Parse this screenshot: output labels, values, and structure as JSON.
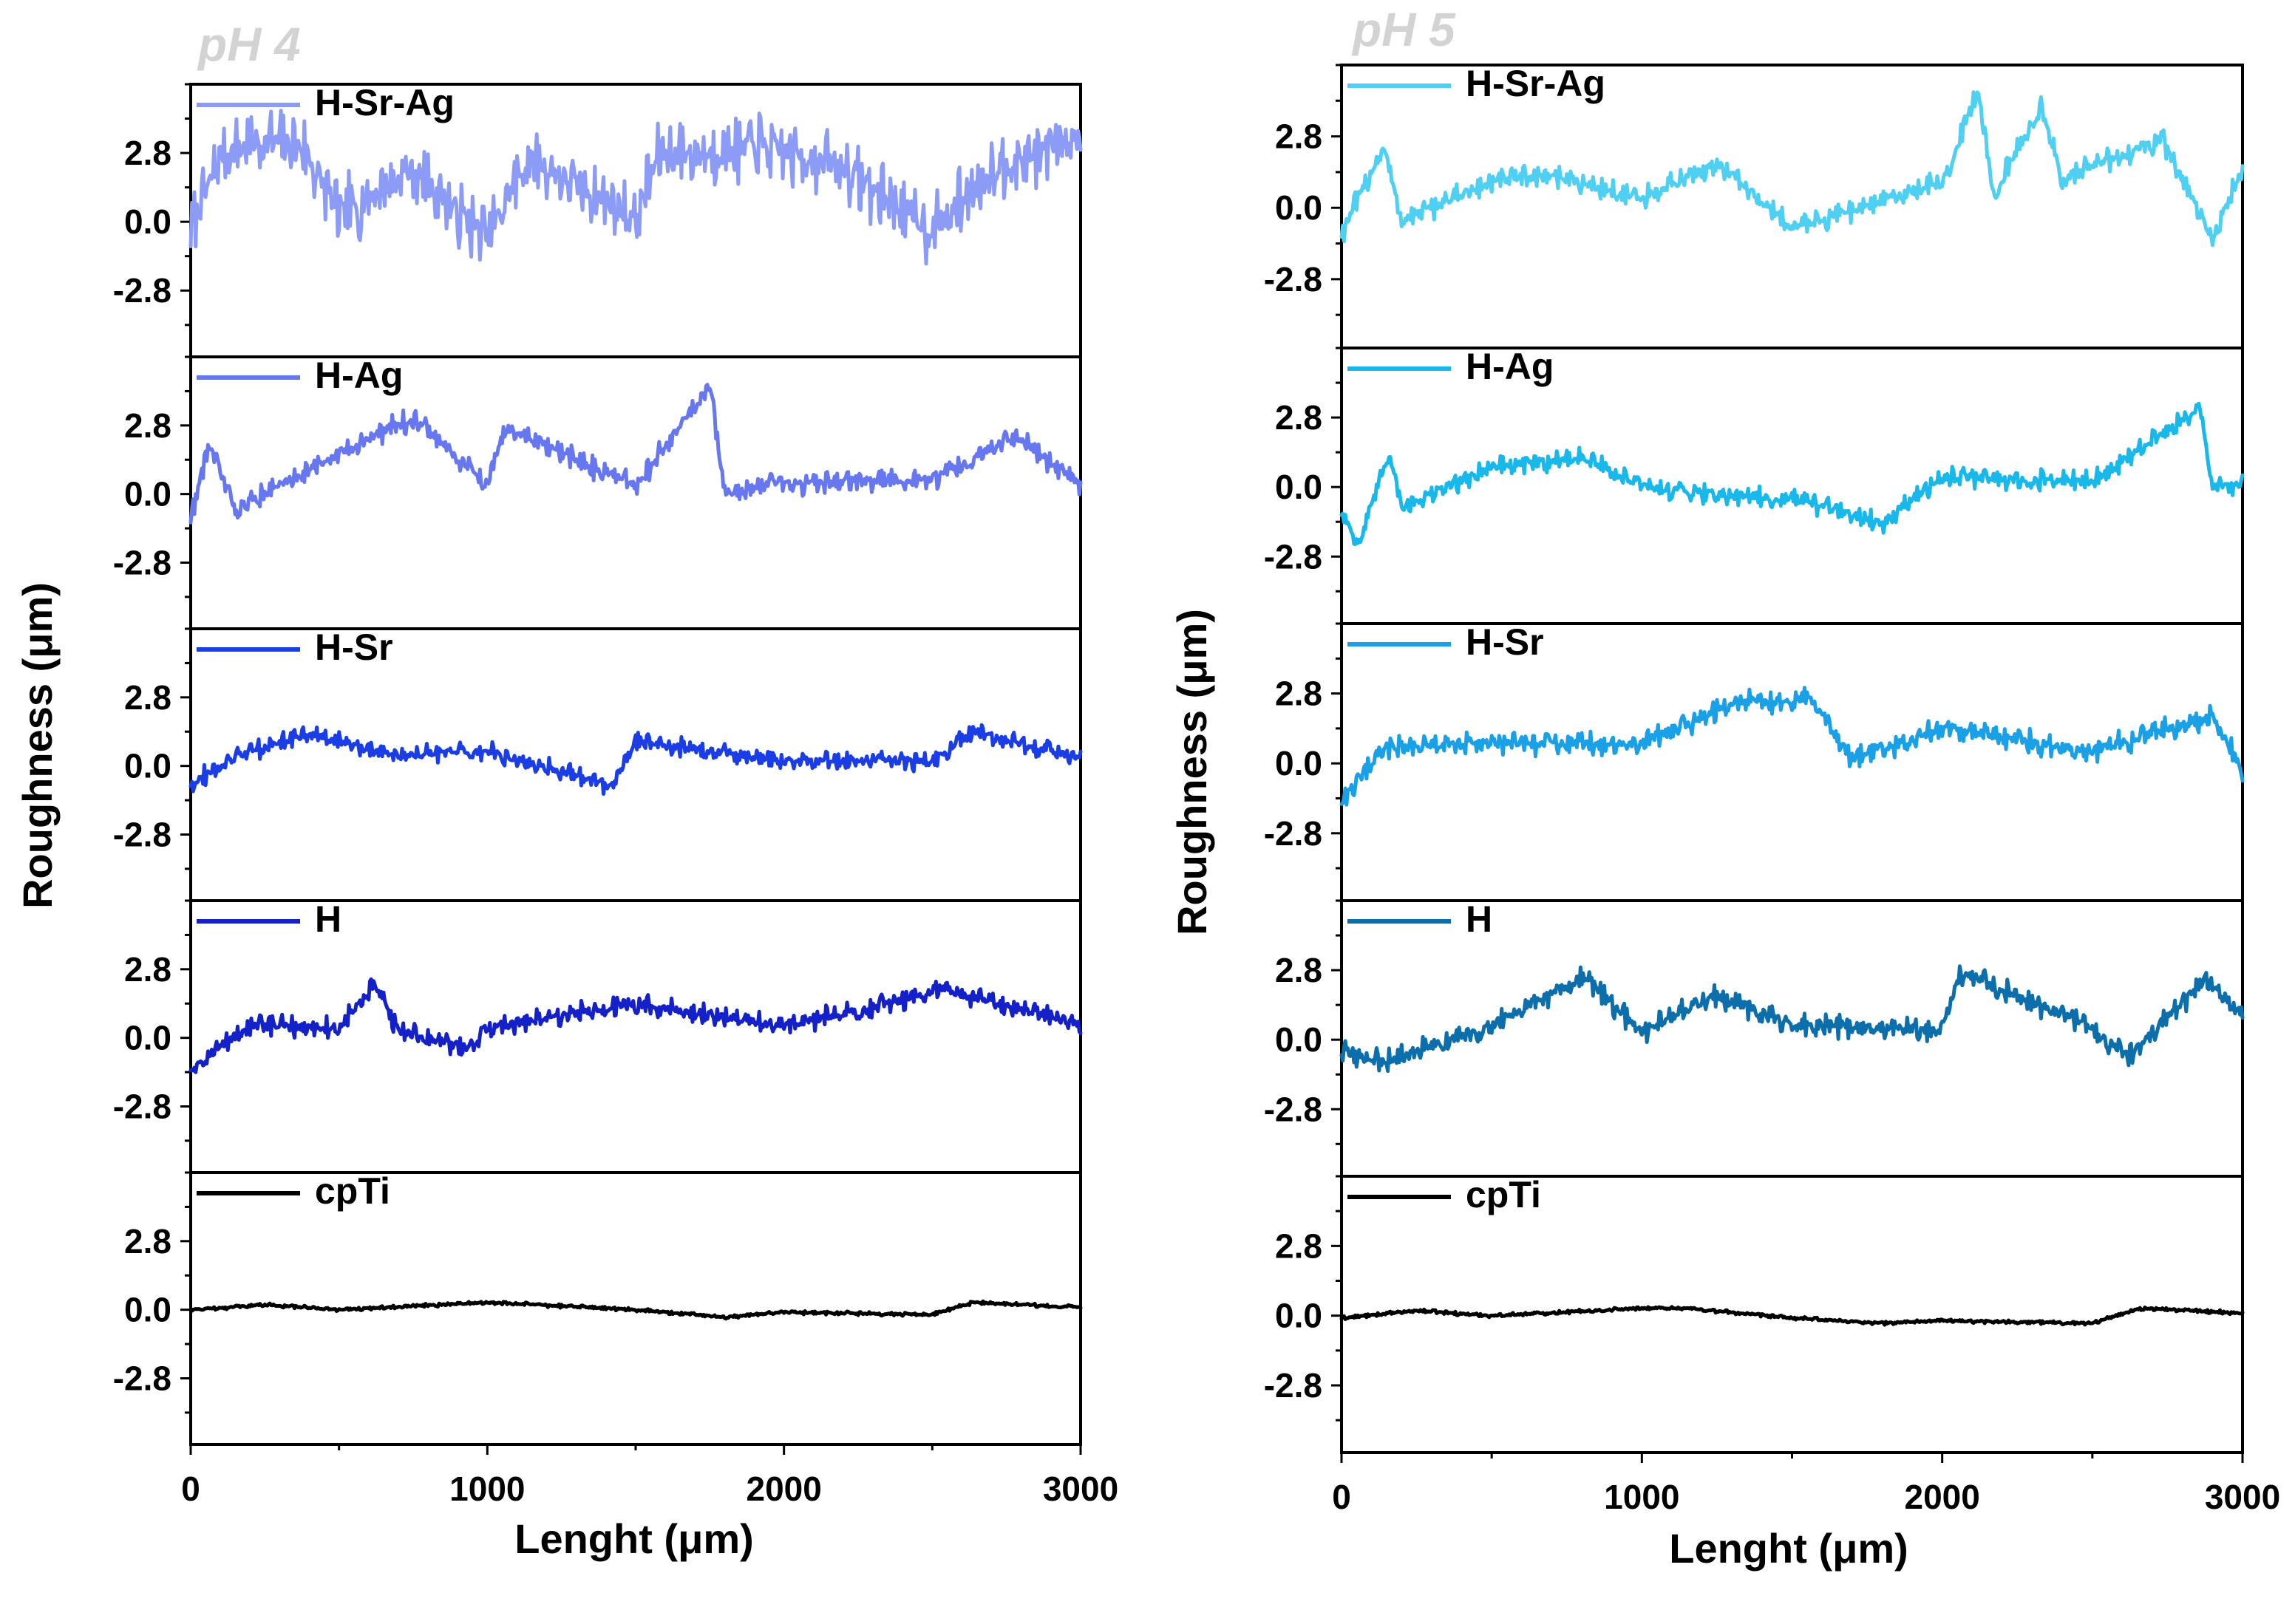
{
  "chart_data": [
    {
      "type": "line",
      "title": "pH 4",
      "xlabel": "Lenght (μm)",
      "ylabel": "Roughness (μm)",
      "xlim": [
        0,
        3000
      ],
      "x_ticks": [
        0,
        1000,
        2000,
        3000
      ],
      "y_ticks": [
        2.8,
        0.0,
        -2.8
      ],
      "ylim_per_subplot": [
        -5.5,
        5.6
      ],
      "subplots": [
        {
          "name": "H-Sr-Ag",
          "color": "#8c9cf6",
          "amplitude": 1.6,
          "points": [
            [
              0,
              -0.5
            ],
            [
              100,
              2.8
            ],
            [
              250,
              3.3
            ],
            [
              375,
              3.1
            ],
            [
              500,
              0.3
            ],
            [
              750,
              2.1
            ],
            [
              1000,
              -0.6
            ],
            [
              1140,
              2.6
            ],
            [
              1500,
              0.2
            ],
            [
              1580,
              2.8
            ],
            [
              1750,
              2.8
            ],
            [
              1940,
              3.1
            ],
            [
              2200,
              2.2
            ],
            [
              2500,
              -0.4
            ],
            [
              2700,
              2.1
            ],
            [
              3000,
              3.5
            ]
          ]
        },
        {
          "name": "H-Ag",
          "color": "#6677f0",
          "amplitude": 0.55,
          "points": [
            [
              0,
              -1.0
            ],
            [
              60,
              2.0
            ],
            [
              150,
              -0.6
            ],
            [
              700,
              2.9
            ],
            [
              770,
              2.9
            ],
            [
              1000,
              0.4
            ],
            [
              1060,
              2.7
            ],
            [
              1500,
              0.3
            ],
            [
              1750,
              4.4
            ],
            [
              1800,
              0.0
            ],
            [
              2000,
              0.4
            ],
            [
              2500,
              0.6
            ],
            [
              2780,
              2.4
            ],
            [
              3000,
              0.4
            ]
          ]
        },
        {
          "name": "H-Sr",
          "color": "#1a3de6",
          "amplitude": 0.45,
          "points": [
            [
              0,
              -0.7
            ],
            [
              200,
              0.6
            ],
            [
              400,
              1.3
            ],
            [
              700,
              0.4
            ],
            [
              1000,
              0.6
            ],
            [
              1420,
              -0.8
            ],
            [
              1500,
              1.0
            ],
            [
              2000,
              0.2
            ],
            [
              2500,
              0.2
            ],
            [
              2640,
              1.4
            ],
            [
              3000,
              0.3
            ]
          ]
        },
        {
          "name": "H",
          "color": "#1521c8",
          "amplitude": 0.5,
          "points": [
            [
              0,
              -1.2
            ],
            [
              200,
              0.5
            ],
            [
              500,
              0.4
            ],
            [
              620,
              2.1
            ],
            [
              700,
              0.3
            ],
            [
              950,
              -0.5
            ],
            [
              1000,
              0.4
            ],
            [
              1500,
              1.4
            ],
            [
              2000,
              0.5
            ],
            [
              2330,
              1.3
            ],
            [
              2530,
              2.0
            ],
            [
              3000,
              0.6
            ]
          ]
        },
        {
          "name": "cpTi",
          "color": "#000000",
          "amplitude": 0.08,
          "points": [
            [
              0,
              0.0
            ],
            [
              250,
              0.2
            ],
            [
              500,
              0.0
            ],
            [
              1000,
              0.3
            ],
            [
              1500,
              0.0
            ],
            [
              1800,
              -0.3
            ],
            [
              2000,
              -0.1
            ],
            [
              2500,
              -0.2
            ],
            [
              2640,
              0.3
            ],
            [
              3000,
              0.1
            ]
          ]
        }
      ]
    },
    {
      "type": "line",
      "title": "pH 5",
      "xlabel": "Lenght (μm)",
      "ylabel": "Roughness (μm)",
      "xlim": [
        0,
        3000
      ],
      "x_ticks": [
        0,
        1000,
        2000,
        3000
      ],
      "y_ticks": [
        2.8,
        0.0,
        -2.8
      ],
      "ylim_per_subplot": [
        -5.5,
        5.6
      ],
      "subplots": [
        {
          "name": "H-Sr-Ag",
          "color": "#4fd0f2",
          "amplitude": 0.55,
          "points": [
            [
              0,
              -1.0
            ],
            [
              140,
              2.4
            ],
            [
              200,
              -0.5
            ],
            [
              500,
              1.0
            ],
            [
              700,
              1.3
            ],
            [
              1000,
              0.3
            ],
            [
              1250,
              1.8
            ],
            [
              1500,
              -0.8
            ],
            [
              2000,
              1.0
            ],
            [
              2120,
              4.6
            ],
            [
              2170,
              0.5
            ],
            [
              2330,
              3.9
            ],
            [
              2400,
              1.1
            ],
            [
              2730,
              2.7
            ],
            [
              2900,
              -1.2
            ],
            [
              3000,
              1.5
            ]
          ]
        },
        {
          "name": "H-Ag",
          "color": "#19b8eb",
          "amplitude": 0.5,
          "points": [
            [
              0,
              -1.0
            ],
            [
              60,
              -2.3
            ],
            [
              160,
              1.5
            ],
            [
              200,
              -0.8
            ],
            [
              500,
              0.8
            ],
            [
              800,
              1.2
            ],
            [
              1000,
              0.0
            ],
            [
              1500,
              -0.5
            ],
            [
              1800,
              -1.4
            ],
            [
              2000,
              0.4
            ],
            [
              2500,
              0.2
            ],
            [
              2860,
              3.2
            ],
            [
              2900,
              0.0
            ],
            [
              3000,
              0.1
            ]
          ]
        },
        {
          "name": "H-Sr",
          "color": "#19a0e6",
          "amplitude": 0.55,
          "points": [
            [
              0,
              -1.5
            ],
            [
              150,
              0.6
            ],
            [
              500,
              0.8
            ],
            [
              1000,
              0.8
            ],
            [
              1300,
              2.4
            ],
            [
              1560,
              2.6
            ],
            [
              1700,
              0.2
            ],
            [
              2000,
              1.4
            ],
            [
              2500,
              0.5
            ],
            [
              2900,
              1.9
            ],
            [
              3000,
              -0.3
            ]
          ]
        },
        {
          "name": "H",
          "color": "#0c6fac",
          "amplitude": 0.55,
          "points": [
            [
              0,
              -0.5
            ],
            [
              150,
              -0.9
            ],
            [
              500,
              0.6
            ],
            [
              810,
              2.5
            ],
            [
              1000,
              0.3
            ],
            [
              1250,
              1.8
            ],
            [
              1500,
              0.6
            ],
            [
              2000,
              0.4
            ],
            [
              2060,
              2.7
            ],
            [
              2500,
              0.5
            ],
            [
              2620,
              -0.7
            ],
            [
              2880,
              2.5
            ],
            [
              3000,
              1.0
            ]
          ]
        },
        {
          "name": "cpTi",
          "color": "#000000",
          "amplitude": 0.08,
          "points": [
            [
              0,
              -0.1
            ],
            [
              250,
              0.2
            ],
            [
              500,
              0.0
            ],
            [
              1000,
              0.3
            ],
            [
              1150,
              0.3
            ],
            [
              1500,
              -0.1
            ],
            [
              1800,
              -0.3
            ],
            [
              2000,
              -0.2
            ],
            [
              2500,
              -0.3
            ],
            [
              2660,
              0.3
            ],
            [
              3000,
              0.1
            ]
          ]
        }
      ]
    }
  ]
}
